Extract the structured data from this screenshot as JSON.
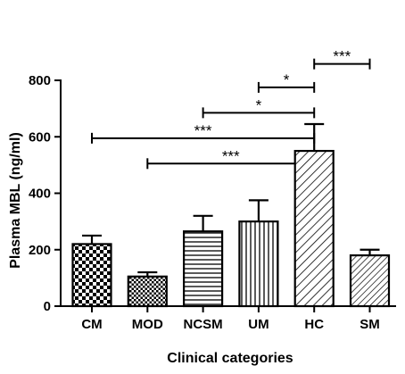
{
  "chart_data": {
    "type": "bar",
    "xlabel": "Clinical categories",
    "ylabel": "Plasma MBL (ng/ml)",
    "ylim": [
      0,
      800
    ],
    "yticks": [
      0,
      200,
      400,
      600,
      800
    ],
    "categories": [
      "CM",
      "MOD",
      "NCSM",
      "UM",
      "HC",
      "SM"
    ],
    "values": [
      220,
      105,
      265,
      300,
      550,
      180
    ],
    "errors": [
      30,
      15,
      55,
      75,
      95,
      20
    ],
    "patterns": [
      "checker",
      "checker-fine",
      "horizontal",
      "vertical",
      "diagonal",
      "diagonal-fine"
    ],
    "grid": false,
    "legend": "none",
    "significance": [
      {
        "from": "HC",
        "to": "SM",
        "label": "***",
        "y": 858
      },
      {
        "from": "UM",
        "to": "HC",
        "label": "*",
        "y": 775
      },
      {
        "from": "NCSM",
        "to": "HC",
        "label": "*",
        "y": 685
      },
      {
        "from": "CM",
        "to": "HC",
        "label": "***",
        "y": 595
      },
      {
        "from": "MOD",
        "to": "HC",
        "label": "***",
        "y": 505
      }
    ]
  }
}
